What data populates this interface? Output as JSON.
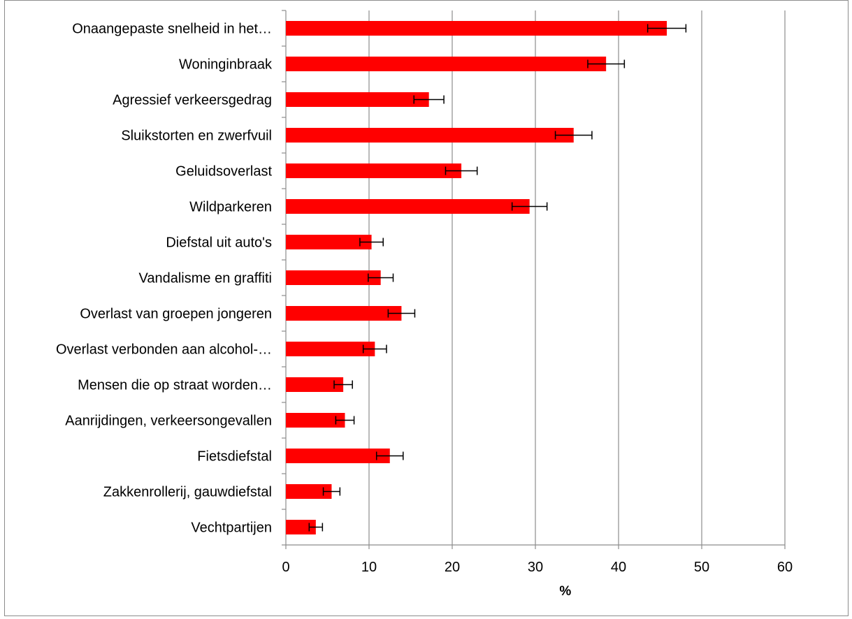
{
  "chart_data": {
    "type": "bar",
    "orientation": "horizontal",
    "title": "",
    "xlabel": "%",
    "ylabel": "",
    "xlim": [
      0,
      60
    ],
    "x_ticks": [
      "0",
      "10",
      "20",
      "30",
      "40",
      "50",
      "60"
    ],
    "grid": true,
    "legend": "none",
    "bar_color": "#ff0000",
    "categories": [
      "Onaangepaste snelheid in het…",
      "Woninginbraak",
      "Agressief verkeersgedrag",
      "Sluikstorten en zwerfvuil",
      "Geluidsoverlast",
      "Wildparkeren",
      "Diefstal uit auto's",
      "Vandalisme en graffiti",
      "Overlast van groepen jongeren",
      "Overlast verbonden aan alcohol-…",
      "Mensen die op straat worden…",
      "Aanrijdingen, verkeersongevallen",
      "Fietsdiefstal",
      "Zakkenrollerij, gauwdiefstal",
      "Vechtpartijen"
    ],
    "values": [
      45.8,
      38.5,
      17.2,
      34.6,
      21.1,
      29.3,
      10.3,
      11.4,
      13.9,
      10.7,
      6.9,
      7.1,
      12.5,
      5.5,
      3.6
    ],
    "error": [
      2.3,
      2.2,
      1.8,
      2.2,
      1.9,
      2.1,
      1.4,
      1.5,
      1.6,
      1.4,
      1.1,
      1.1,
      1.6,
      1.0,
      0.8
    ]
  }
}
